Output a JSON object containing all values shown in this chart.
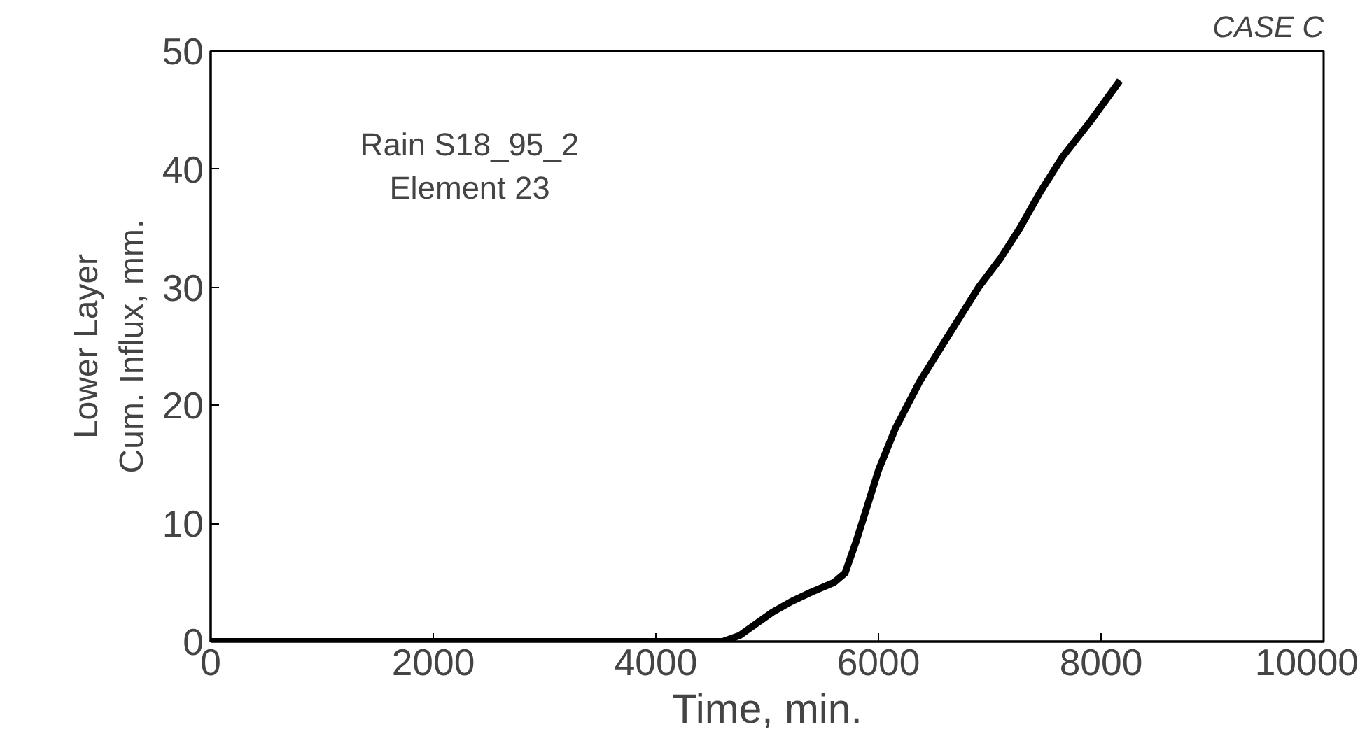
{
  "chart_data": {
    "type": "line",
    "xlabel": "Time, min.",
    "ylabel": "Lower Layer\nCum. Influx, mm.",
    "annotations": [
      "Rain S18_95_2\nElement 23",
      "CASE C"
    ],
    "x": [
      0,
      1000,
      2000,
      3000,
      4000,
      4600,
      4750,
      4900,
      5050,
      5220,
      5400,
      5600,
      5700,
      5800,
      5900,
      6000,
      6150,
      6370,
      6600,
      6900,
      7100,
      7270,
      7450,
      7650,
      7900,
      8170
    ],
    "series": [
      {
        "color": "#000000",
        "values": [
          0,
          0,
          0,
          0,
          0,
          0,
          0.5,
          1.5,
          2.5,
          3.4,
          4.2,
          5.0,
          5.8,
          8.5,
          11.5,
          14.5,
          18,
          22,
          25.5,
          30,
          32.5,
          35,
          38,
          41,
          44,
          47.5
        ]
      }
    ],
    "xlim": [
      0,
      10000
    ],
    "ylim": [
      0,
      50
    ],
    "xticks": [
      0,
      2000,
      4000,
      6000,
      8000,
      10000
    ],
    "yticks": [
      0,
      10,
      20,
      30,
      40,
      50
    ],
    "grid": false,
    "marker": "none",
    "line_style": "solid"
  }
}
